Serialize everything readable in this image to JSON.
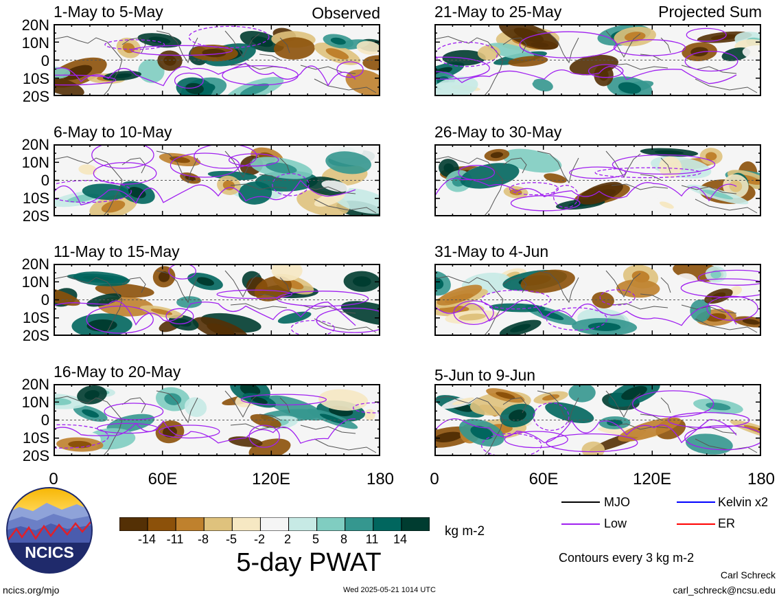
{
  "left_header": "Observed",
  "right_header": "Projected Sum",
  "lat_labels": [
    "20N",
    "10N",
    "0",
    "10S",
    "20S"
  ],
  "lon_labels": [
    "0",
    "60E",
    "120E",
    "180"
  ],
  "panels": [
    {
      "title": "1-May to 5-May"
    },
    {
      "title": "6-May to 10-May"
    },
    {
      "title": "11-May to 15-May"
    },
    {
      "title": "16-May to 20-May"
    },
    {
      "title": "21-May to 25-May"
    },
    {
      "title": "26-May to 30-May"
    },
    {
      "title": "31-May to 4-Jun"
    },
    {
      "title": "5-Jun to 9-Jun"
    }
  ],
  "colorbar": {
    "ticks": [
      "-14",
      "-11",
      "-8",
      "-5",
      "-2",
      "2",
      "5",
      "8",
      "11",
      "14"
    ],
    "colors": [
      "#543005",
      "#8c510a",
      "#bf812d",
      "#dfc27d",
      "#f6e8c3",
      "#f5f5f5",
      "#c7eae5",
      "#80cdc1",
      "#35978f",
      "#01665e",
      "#003c30"
    ],
    "units": "kg m-2",
    "title": "5-day PWAT"
  },
  "legend": {
    "items": [
      {
        "label": "MJO",
        "color": "#000000"
      },
      {
        "label": "Kelvin x2",
        "color": "#0000ff"
      },
      {
        "label": "Low",
        "color": "#a020f0"
      },
      {
        "label": "ER",
        "color": "#ff0000"
      }
    ],
    "contour_note": "Contours every 3 kg m-2"
  },
  "logo": {
    "text": "NCICS"
  },
  "footer": {
    "site": "ncics.org/mjo",
    "timestamp": "Wed 2025-05-21 1014 UTC",
    "author": "Carl Schreck",
    "email": "carl_schreck@ncsu.edu"
  }
}
